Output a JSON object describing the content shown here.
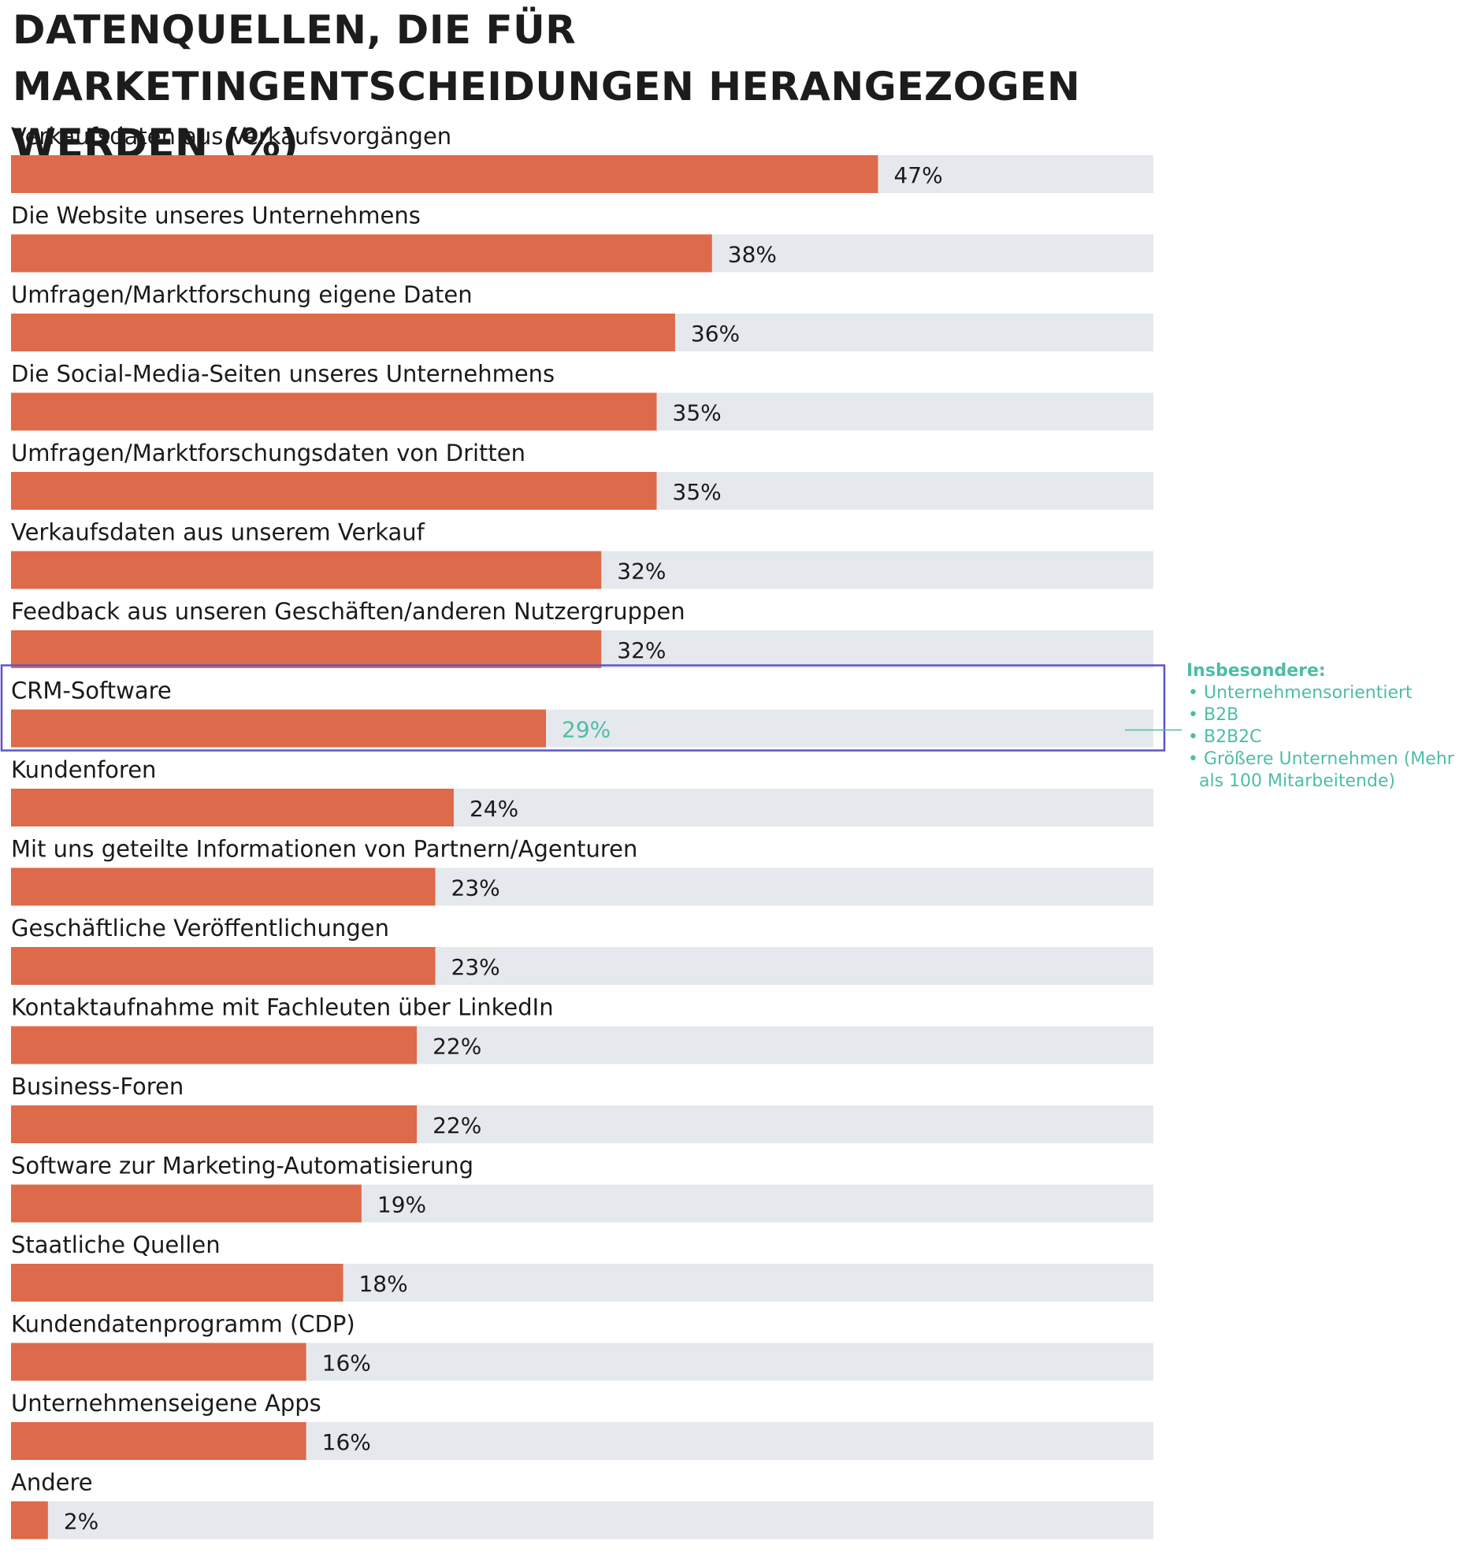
{
  "chart_data": {
    "type": "bar",
    "orientation": "horizontal",
    "title": "DATENQUELLEN, DIE FÜR MARKETINGENTSCHEIDUNGEN HERANGEZOGEN WERDEN (%)",
    "unit": "%",
    "xlim": [
      0,
      90
    ],
    "categories": [
      "Verkaufsdaten aus Verkaufsvorgängen",
      "Die Website unseres Unternehmens",
      "Umfragen/Marktforschung eigene Daten",
      "Die Social-Media-Seiten unseres Unternehmens",
      "Umfragen/Marktforschungsdaten von Dritten",
      "Verkaufsdaten aus unserem Verkauf",
      "Feedback aus unseren Geschäften/anderen Nutzergruppen",
      "CRM-Software",
      "Kundenforen",
      "Mit uns geteilte Informationen von Partnern/Agenturen",
      "Geschäftliche Veröffentlichungen",
      "Kontaktaufnahme mit Fachleuten über LinkedIn",
      "Business-Foren",
      "Software zur Marketing-Automatisierung",
      "Staatliche Quellen",
      "Kundendatenprogramm (CDP)",
      "Unternehmenseigene Apps",
      "Andere"
    ],
    "values": [
      47,
      38,
      36,
      35,
      35,
      32,
      32,
      29,
      24,
      23,
      23,
      22,
      22,
      19,
      18,
      16,
      16,
      2
    ],
    "value_labels": [
      "47%",
      "38%",
      "36%",
      "35%",
      "35%",
      "32%",
      "32%",
      "29%",
      "24%",
      "23%",
      "23%",
      "22%",
      "22%",
      "19%",
      "18%",
      "16%",
      "16%",
      "2%"
    ],
    "highlight_index": 7,
    "annotation": {
      "title": "Insbesondere:",
      "items": [
        "Unternehmensorientiert",
        "B2B",
        "B2B2C",
        "Größere Unternehmen (Mehr als 100 Mitarbeitende)"
      ]
    },
    "colors": {
      "bar": "#dd6a4a",
      "track": "#e5e8ec",
      "highlight_box": "#5b55c9",
      "annotation": "#4dbda6"
    },
    "grid": false,
    "legend": "none"
  }
}
